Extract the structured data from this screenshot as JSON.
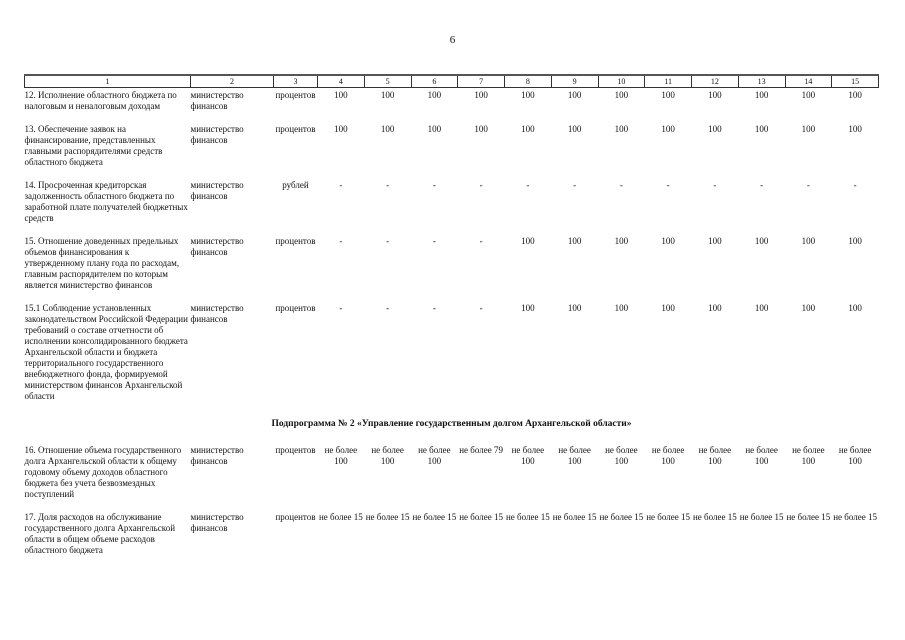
{
  "page": {
    "number": "6"
  },
  "table": {
    "column_numbers": [
      "1",
      "2",
      "3",
      "4",
      "5",
      "6",
      "7",
      "8",
      "9",
      "10",
      "11",
      "12",
      "13",
      "14",
      "15"
    ],
    "rows": [
      {
        "indicator": "12. Исполнение областного бюджета по налоговым и неналоговым доходам",
        "executor": "министерство финансов",
        "unit": "процентов",
        "values": [
          "100",
          "100",
          "100",
          "100",
          "100",
          "100",
          "100",
          "100",
          "100",
          "100",
          "100",
          "100"
        ]
      },
      {
        "indicator": "13. Обеспечение заявок на финансирование, представленных главными распорядителями средств областного бюджета",
        "executor": "министерство финансов",
        "unit": "процентов",
        "values": [
          "100",
          "100",
          "100",
          "100",
          "100",
          "100",
          "100",
          "100",
          "100",
          "100",
          "100",
          "100"
        ]
      },
      {
        "indicator": "14. Просроченная кредиторская задолженность областного бюджета по заработной плате получателей бюджетных средств",
        "executor": "министерство финансов",
        "unit": "рублей",
        "values": [
          "-",
          "-",
          "-",
          "-",
          "-",
          "-",
          "-",
          "-",
          "-",
          "-",
          "-",
          "-"
        ]
      },
      {
        "indicator": "15. Отношение доведенных предельных объемов финансирования к утвержденному плану года по расходам, главным распорядителем по которым является министерство финансов",
        "executor": "министерство финансов",
        "unit": "процентов",
        "values": [
          "-",
          "-",
          "-",
          "-",
          "100",
          "100",
          "100",
          "100",
          "100",
          "100",
          "100",
          "100"
        ]
      },
      {
        "indicator": "15.1  Соблюдение установленных законодательством Российской Федерации требований о составе отчетности об исполнении консолидированного бюджета Архангельской области и бюджета территориального государственного внебюджетного фонда, формируемой министерством финансов Архангельской области",
        "executor": "министерство финансов",
        "unit": "процентов",
        "values": [
          "-",
          "-",
          "-",
          "-",
          "100",
          "100",
          "100",
          "100",
          "100",
          "100",
          "100",
          "100"
        ]
      },
      {
        "section": "Подпрограмма № 2 «Управление государственным долгом Архангельской области»"
      },
      {
        "indicator": "16. Отношение объема государственного долга Архангельской области к общему годовому объему доходов областного бюджета без учета безвозмездных поступлений",
        "executor": "министерство финансов",
        "unit": "процентов",
        "values": [
          "не более 100",
          "не более 100",
          "не более 100",
          "не более 79",
          "не более 100",
          "не более 100",
          "не более 100",
          "не более 100",
          "не более 100",
          "не более 100",
          "не более 100",
          "не более 100"
        ]
      },
      {
        "indicator": "17. Доля расходов на обслуживание государственного долга Архангельской области в общем объеме расходов областного бюджета",
        "executor": "министерство финансов",
        "unit": "процентов",
        "values": [
          "не более 15",
          "не более 15",
          "не более 15",
          "не более 15",
          "не более 15",
          "не более 15",
          "не более 15",
          "не более 15",
          "не более 15",
          "не более 15",
          "не более 15",
          "не более 15"
        ]
      }
    ]
  }
}
